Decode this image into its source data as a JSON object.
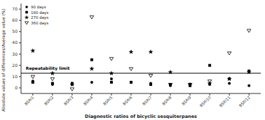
{
  "chart_data": {
    "type": "scatter",
    "xlabel": "Diagnostic ratios of bicyclic sesquiterpanes",
    "ylabel": "Absolute values of differences/Average value (%)",
    "categories": [
      "BSRI1",
      "BSRI2",
      "BSRI3",
      "BSRI4",
      "BSRI5",
      "BSRI6",
      "BSRI7",
      "BSRI8",
      "BSRI9",
      "BSRI10",
      "BSRI11",
      "BSRI12"
    ],
    "series": [
      {
        "name": "90 days",
        "color": "#000000",
        "marker": "circle",
        "values": [
          6,
          3,
          3,
          5,
          8,
          5,
          4,
          2,
          3,
          3,
          4,
          2
        ]
      },
      {
        "name": "180 days",
        "color": "#000000",
        "marker": "square",
        "values": [
          5,
          4,
          4,
          25,
          5,
          5,
          3,
          3,
          2,
          20,
          8,
          15
        ]
      },
      {
        "name": "270 days",
        "color": "#000000",
        "marker": "star",
        "values": [
          33,
          13,
          3,
          17,
          13,
          32,
          32,
          14,
          3,
          4,
          8,
          14
        ]
      },
      {
        "name": "360 days",
        "color": "#000000",
        "marker": "triangle-down-open",
        "values": [
          10,
          8,
          -1,
          63,
          26,
          17,
          11,
          3,
          3,
          6,
          31,
          51
        ]
      }
    ],
    "reference_lines": [
      {
        "y": 13,
        "label": "Repeatability limit",
        "color": "#000000"
      }
    ],
    "ylim": [
      -5,
      75
    ],
    "yticks": [
      0,
      10,
      20,
      30,
      40,
      50,
      60,
      70
    ],
    "legend": "upper left",
    "grid": false
  }
}
